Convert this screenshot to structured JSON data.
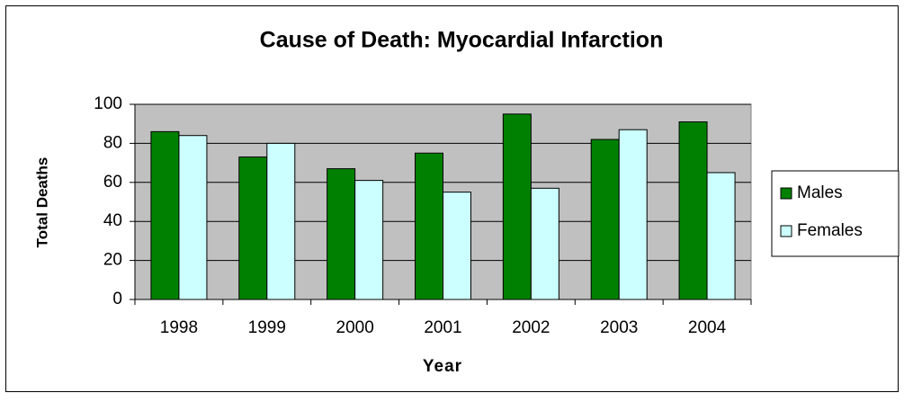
{
  "chart_data": {
    "type": "bar",
    "title": "Cause of  Death: Myocardial Infarction",
    "x_label": "Year",
    "y_label": "Total Deaths",
    "categories": [
      "1998",
      "1999",
      "2000",
      "2001",
      "2002",
      "2003",
      "2004"
    ],
    "series": [
      {
        "name": "Males",
        "color": "#008000",
        "values": [
          86,
          73,
          67,
          75,
          95,
          82,
          91
        ]
      },
      {
        "name": "Females",
        "color": "#ccffff",
        "values": [
          84,
          80,
          61,
          55,
          57,
          87,
          65
        ]
      }
    ],
    "ylim": [
      0,
      100
    ],
    "yticks": [
      0,
      20,
      40,
      60,
      80,
      100
    ],
    "grid": true,
    "legend": "right"
  }
}
